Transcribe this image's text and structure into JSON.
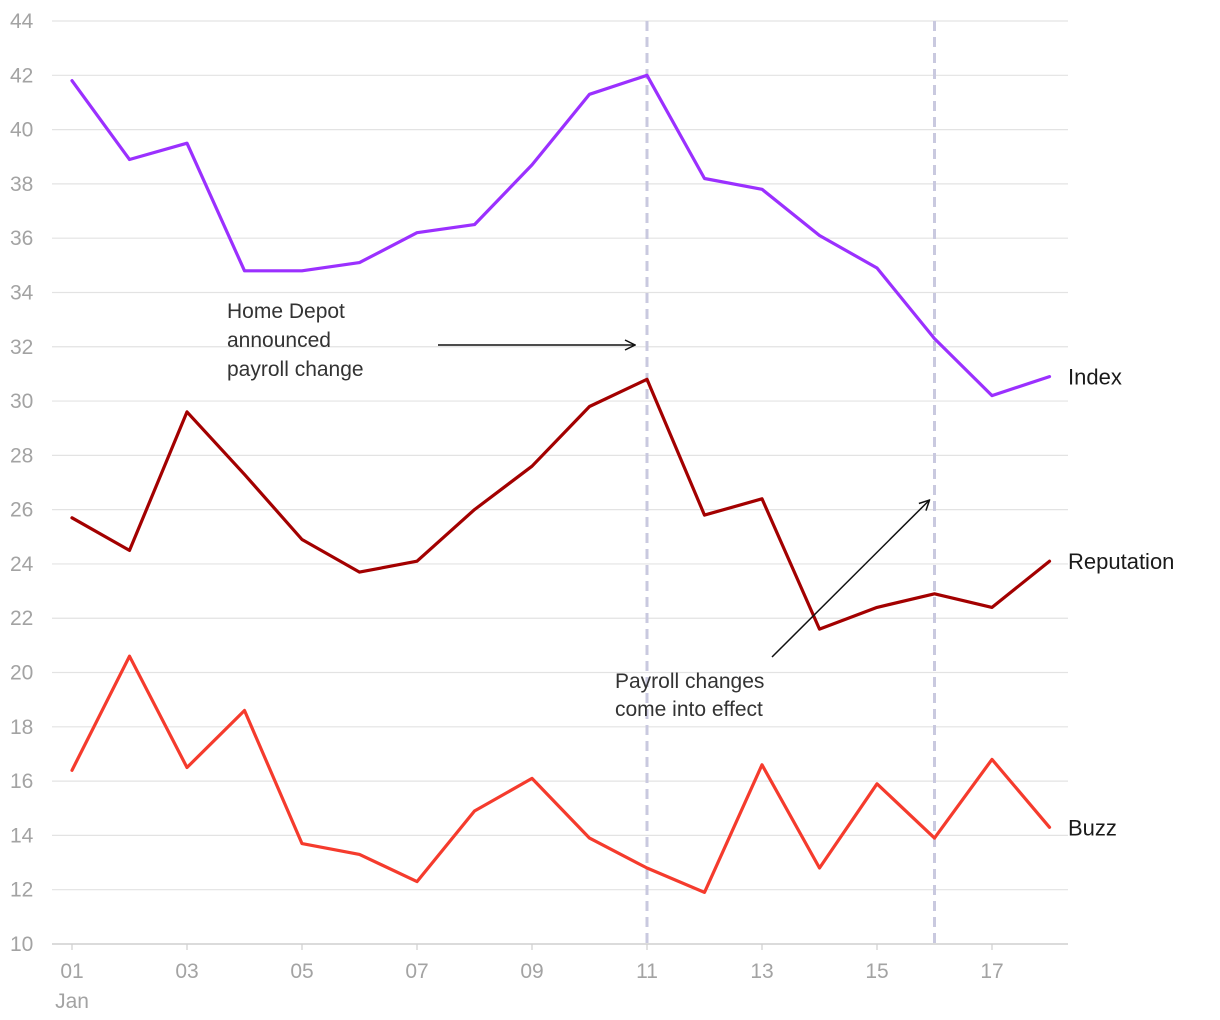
{
  "chart_data": {
    "type": "line",
    "x": [
      "01",
      "02",
      "03",
      "04",
      "05",
      "06",
      "07",
      "08",
      "09",
      "10",
      "11",
      "12",
      "13",
      "14",
      "15",
      "16",
      "17",
      "18"
    ],
    "x_tick_labels": [
      "01",
      "03",
      "05",
      "07",
      "09",
      "11",
      "13",
      "15",
      "17"
    ],
    "x_month_label": "Jan",
    "ylim": [
      10,
      44
    ],
    "y_ticks": [
      10,
      12,
      14,
      16,
      18,
      20,
      22,
      24,
      26,
      28,
      30,
      32,
      34,
      36,
      38,
      40,
      42,
      44
    ],
    "grid": true,
    "series": [
      {
        "name": "Index",
        "color": "#9b30ff",
        "values": [
          41.8,
          38.9,
          39.5,
          34.8,
          34.8,
          35.1,
          36.2,
          36.5,
          38.7,
          41.3,
          42.0,
          38.2,
          37.8,
          36.1,
          34.9,
          32.3,
          30.2,
          30.9
        ]
      },
      {
        "name": "Reputation",
        "color": "#a30000",
        "values": [
          25.7,
          24.5,
          29.6,
          27.3,
          24.9,
          23.7,
          24.1,
          26.0,
          27.6,
          29.8,
          30.8,
          25.8,
          26.4,
          21.6,
          22.4,
          22.9,
          22.4,
          24.1
        ]
      },
      {
        "name": "Buzz",
        "color": "#f53b2d",
        "values": [
          16.4,
          20.6,
          16.5,
          18.6,
          13.7,
          13.3,
          12.3,
          14.9,
          16.1,
          13.9,
          12.8,
          11.9,
          16.6,
          12.8,
          15.9,
          13.9,
          16.8,
          14.3
        ]
      }
    ],
    "events": [
      {
        "x": "11",
        "lines": [
          "Home Depot",
          "announced",
          "payroll change"
        ]
      },
      {
        "x": "16",
        "lines": [
          "Payroll changes",
          "come into effect"
        ]
      }
    ]
  }
}
